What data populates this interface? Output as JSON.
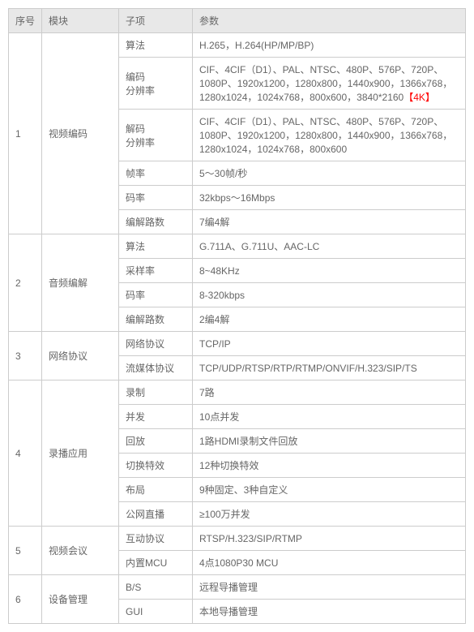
{
  "headers": {
    "seq": "序号",
    "module": "模块",
    "sub": "子项",
    "param": "参数"
  },
  "sections": [
    {
      "seq": "1",
      "module": "视频编码",
      "rows": [
        {
          "sub": "算法",
          "param": "H.265，H.264(HP/MP/BP)"
        },
        {
          "sub": "编码\n分辨率",
          "param": "CIF、4CIF（D1）、PAL、NTSC、480P、576P、720P、1080P、1920x1200，1280x800，1440x900，1366x768，1280x1024，1024x768，800x600，3840*2160",
          "extra": "【4K】"
        },
        {
          "sub": "解码\n分辨率",
          "param": "CIF、4CIF（D1）、PAL、NTSC、480P、576P、720P、1080P、1920x1200，1280x800，1440x900，1366x768，1280x1024，1024x768，800x600"
        },
        {
          "sub": "帧率",
          "param": "5～30帧/秒"
        },
        {
          "sub": "码率",
          "param": "32kbps～16Mbps"
        },
        {
          "sub": "编解路数",
          "param": "7编4解"
        }
      ]
    },
    {
      "seq": "2",
      "module": "音频编解",
      "rows": [
        {
          "sub": "算法",
          "param": "G.711A、G.711U、AAC-LC"
        },
        {
          "sub": "采样率",
          "param": "8~48KHz"
        },
        {
          "sub": "码率",
          "param": "8-320kbps"
        },
        {
          "sub": "编解路数",
          "param": "2编4解"
        }
      ]
    },
    {
      "seq": "3",
      "module": "网络协议",
      "rows": [
        {
          "sub": "网络协议",
          "param": "TCP/IP"
        },
        {
          "sub": "流媒体协议",
          "param": "TCP/UDP/RTSP/RTP/RTMP/ONVIF/H.323/SIP/TS"
        }
      ]
    },
    {
      "seq": "4",
      "module": "录播应用",
      "rows": [
        {
          "sub": "录制",
          "param": "7路"
        },
        {
          "sub": "并发",
          "param": "10点并发"
        },
        {
          "sub": "回放",
          "param": "1路HDMI录制文件回放"
        },
        {
          "sub": "切换特效",
          "param": "12种切换特效"
        },
        {
          "sub": "布局",
          "param": "9种固定、3种自定义"
        },
        {
          "sub": "公网直播",
          "param": "≥100万并发"
        }
      ]
    },
    {
      "seq": "5",
      "module": "视频会议",
      "rows": [
        {
          "sub": "互动协议",
          "param": "RTSP/H.323/SIP/RTMP"
        },
        {
          "sub": "内置MCU",
          "param": "4点1080P30 MCU"
        }
      ]
    },
    {
      "seq": "6",
      "module": "设备管理",
      "rows": [
        {
          "sub": "B/S",
          "param": "远程导播管理"
        },
        {
          "sub": "GUI",
          "param": "本地导播管理"
        }
      ]
    }
  ],
  "colors": {
    "border": "#cccccc",
    "header_bg": "#e8e8e8",
    "text": "#666666",
    "highlight": "#ff0000",
    "background": "#ffffff"
  },
  "typography": {
    "font_family": "Arial, Microsoft YaHei, sans-serif",
    "font_size": 12
  }
}
